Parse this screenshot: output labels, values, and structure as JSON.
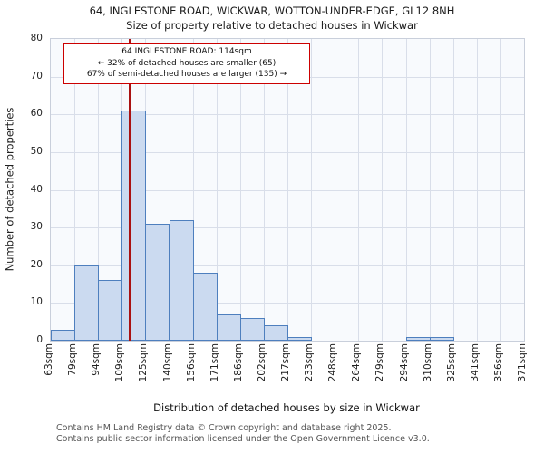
{
  "page": {
    "footer_line1": "Contains HM Land Registry data © Crown copyright and database right 2025.",
    "footer_line2": "Contains public sector information licensed under the Open Government Licence v3.0."
  },
  "chart_data": {
    "type": "bar",
    "title": "64, INGLESTONE ROAD, WICKWAR, WOTTON-UNDER-EDGE, GL12 8NH",
    "subtitle": "Size of property relative to detached houses in Wickwar",
    "xlabel": "Distribution of detached houses by size in Wickwar",
    "ylabel": "Number of detached properties",
    "bin_edges": [
      63,
      79,
      94,
      109,
      125,
      140,
      156,
      171,
      186,
      202,
      217,
      233,
      248,
      264,
      279,
      294,
      310,
      325,
      341,
      356,
      371
    ],
    "tick_labels": [
      "63sqm",
      "79sqm",
      "94sqm",
      "109sqm",
      "125sqm",
      "140sqm",
      "156sqm",
      "171sqm",
      "186sqm",
      "202sqm",
      "217sqm",
      "233sqm",
      "248sqm",
      "264sqm",
      "279sqm",
      "294sqm",
      "310sqm",
      "325sqm",
      "341sqm",
      "356sqm",
      "371sqm"
    ],
    "values": [
      3,
      20,
      16,
      61,
      31,
      32,
      18,
      7,
      6,
      4,
      1,
      0,
      0,
      0,
      0,
      1,
      1,
      0,
      0,
      0
    ],
    "ylim": [
      0,
      80
    ],
    "ytick_step": 10,
    "grid": true,
    "legend": "none",
    "marker": {
      "value": 114
    },
    "annotation": {
      "lines": [
        "64 INGLESTONE ROAD: 114sqm",
        "← 32% of detached houses are smaller (65)",
        "67% of semi-detached houses are larger (135) →"
      ]
    },
    "colors": {
      "bar_fill": "#cbdaf0",
      "bar_edge": "#4e7fbe",
      "grid": "#d9dee9",
      "marker": "#aa1111",
      "annotation_border": "#cc0000"
    }
  }
}
